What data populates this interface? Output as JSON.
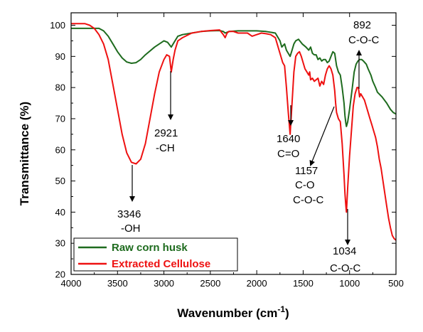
{
  "chart_data": {
    "type": "line",
    "xlabel": "Wavenumber (cm",
    "xlabel_sup": "-1",
    "xlabel_close": ")",
    "ylabel": "Transmittance (%)",
    "xlim": [
      4000,
      500
    ],
    "ylim": [
      20,
      104
    ],
    "x_reversed": true,
    "xticks": [
      "4000",
      "3500",
      "3000",
      "2500",
      "2000",
      "1500",
      "1000",
      "500"
    ],
    "yticks": [
      "20",
      "30",
      "40",
      "50",
      "60",
      "70",
      "80",
      "90",
      "100"
    ],
    "legend_position": "bottom-left",
    "series": [
      {
        "name": "Raw corn husk",
        "color": "#1e6b1e",
        "points": [
          [
            4000,
            99
          ],
          [
            3900,
            99
          ],
          [
            3800,
            99
          ],
          [
            3700,
            99
          ],
          [
            3650,
            98.2
          ],
          [
            3600,
            96.5
          ],
          [
            3550,
            94
          ],
          [
            3500,
            91.5
          ],
          [
            3450,
            89.5
          ],
          [
            3400,
            88.2
          ],
          [
            3350,
            87.8
          ],
          [
            3300,
            88
          ],
          [
            3250,
            89
          ],
          [
            3200,
            90.5
          ],
          [
            3100,
            93
          ],
          [
            3000,
            95
          ],
          [
            2960,
            94.5
          ],
          [
            2921,
            93
          ],
          [
            2880,
            95
          ],
          [
            2850,
            96.5
          ],
          [
            2800,
            97
          ],
          [
            2700,
            97.5
          ],
          [
            2600,
            98
          ],
          [
            2500,
            98.2
          ],
          [
            2400,
            98.3
          ],
          [
            2360,
            98
          ],
          [
            2340,
            97.5
          ],
          [
            2300,
            98
          ],
          [
            2200,
            98.2
          ],
          [
            2100,
            98.2
          ],
          [
            2000,
            98.2
          ],
          [
            1900,
            98
          ],
          [
            1800,
            97.5
          ],
          [
            1750,
            95
          ],
          [
            1730,
            93
          ],
          [
            1700,
            94
          ],
          [
            1680,
            92
          ],
          [
            1660,
            91
          ],
          [
            1640,
            90
          ],
          [
            1620,
            92
          ],
          [
            1600,
            94
          ],
          [
            1580,
            95
          ],
          [
            1550,
            95.5
          ],
          [
            1510,
            94
          ],
          [
            1470,
            93
          ],
          [
            1440,
            92
          ],
          [
            1420,
            93
          ],
          [
            1400,
            91
          ],
          [
            1380,
            90.5
          ],
          [
            1360,
            90.5
          ],
          [
            1340,
            89
          ],
          [
            1320,
            89.5
          ],
          [
            1300,
            88.5
          ],
          [
            1280,
            89
          ],
          [
            1260,
            89
          ],
          [
            1240,
            88
          ],
          [
            1220,
            88.5
          ],
          [
            1200,
            90
          ],
          [
            1180,
            91.5
          ],
          [
            1160,
            91
          ],
          [
            1140,
            87
          ],
          [
            1120,
            85
          ],
          [
            1100,
            84
          ],
          [
            1080,
            80
          ],
          [
            1060,
            75
          ],
          [
            1050,
            71
          ],
          [
            1040,
            68.5
          ],
          [
            1034,
            67.5
          ],
          [
            1020,
            69
          ],
          [
            1000,
            73
          ],
          [
            970,
            80
          ],
          [
            950,
            85
          ],
          [
            930,
            87.5
          ],
          [
            910,
            88.5
          ],
          [
            892,
            89
          ],
          [
            870,
            89
          ],
          [
            850,
            88.5
          ],
          [
            820,
            87.5
          ],
          [
            800,
            86
          ],
          [
            770,
            84
          ],
          [
            750,
            82
          ],
          [
            720,
            80
          ],
          [
            700,
            78.5
          ],
          [
            650,
            77
          ],
          [
            600,
            75
          ],
          [
            560,
            73
          ],
          [
            530,
            72
          ],
          [
            500,
            71.5
          ]
        ]
      },
      {
        "name": "Extracted Cellulose",
        "color": "#ee1111",
        "points": [
          [
            4000,
            100.5
          ],
          [
            3900,
            100.5
          ],
          [
            3850,
            100.5
          ],
          [
            3800,
            100
          ],
          [
            3750,
            99
          ],
          [
            3700,
            97
          ],
          [
            3650,
            94
          ],
          [
            3600,
            89
          ],
          [
            3550,
            81
          ],
          [
            3500,
            73
          ],
          [
            3450,
            65
          ],
          [
            3400,
            59
          ],
          [
            3350,
            56
          ],
          [
            3300,
            55.5
          ],
          [
            3250,
            57
          ],
          [
            3200,
            62
          ],
          [
            3150,
            70
          ],
          [
            3100,
            78
          ],
          [
            3050,
            85
          ],
          [
            3000,
            89
          ],
          [
            2970,
            90.5
          ],
          [
            2940,
            90
          ],
          [
            2921,
            85
          ],
          [
            2900,
            89
          ],
          [
            2880,
            92
          ],
          [
            2850,
            95
          ],
          [
            2800,
            96
          ],
          [
            2700,
            97.5
          ],
          [
            2600,
            98
          ],
          [
            2500,
            98.3
          ],
          [
            2400,
            98.5
          ],
          [
            2360,
            97
          ],
          [
            2340,
            96
          ],
          [
            2320,
            97.5
          ],
          [
            2300,
            98
          ],
          [
            2250,
            98
          ],
          [
            2200,
            97.5
          ],
          [
            2100,
            97.5
          ],
          [
            2050,
            96.5
          ],
          [
            2000,
            97
          ],
          [
            1950,
            97.5
          ],
          [
            1900,
            97.3
          ],
          [
            1850,
            97
          ],
          [
            1800,
            96
          ],
          [
            1760,
            92
          ],
          [
            1720,
            88
          ],
          [
            1700,
            87
          ],
          [
            1680,
            80
          ],
          [
            1660,
            72
          ],
          [
            1640,
            65
          ],
          [
            1620,
            75
          ],
          [
            1600,
            85
          ],
          [
            1580,
            90
          ],
          [
            1560,
            91
          ],
          [
            1540,
            91.5
          ],
          [
            1520,
            90
          ],
          [
            1500,
            88
          ],
          [
            1480,
            86
          ],
          [
            1460,
            85
          ],
          [
            1440,
            84
          ],
          [
            1430,
            85
          ],
          [
            1420,
            82.5
          ],
          [
            1400,
            83
          ],
          [
            1380,
            82
          ],
          [
            1360,
            82.5
          ],
          [
            1340,
            83
          ],
          [
            1320,
            80.5
          ],
          [
            1300,
            82
          ],
          [
            1280,
            81
          ],
          [
            1260,
            84
          ],
          [
            1240,
            86
          ],
          [
            1220,
            87
          ],
          [
            1200,
            86
          ],
          [
            1180,
            84
          ],
          [
            1160,
            79
          ],
          [
            1150,
            75
          ],
          [
            1140,
            72
          ],
          [
            1120,
            70
          ],
          [
            1100,
            69
          ],
          [
            1080,
            62
          ],
          [
            1060,
            52
          ],
          [
            1050,
            46
          ],
          [
            1040,
            42
          ],
          [
            1034,
            40
          ],
          [
            1020,
            48
          ],
          [
            1000,
            58
          ],
          [
            980,
            66
          ],
          [
            960,
            74
          ],
          [
            940,
            78
          ],
          [
            920,
            80
          ],
          [
            905,
            80
          ],
          [
            892,
            77
          ],
          [
            880,
            78
          ],
          [
            860,
            77
          ],
          [
            840,
            76
          ],
          [
            820,
            74
          ],
          [
            800,
            72
          ],
          [
            780,
            70
          ],
          [
            760,
            68
          ],
          [
            740,
            66
          ],
          [
            720,
            64
          ],
          [
            700,
            61
          ],
          [
            680,
            57
          ],
          [
            660,
            54
          ],
          [
            640,
            50
          ],
          [
            620,
            46
          ],
          [
            600,
            42
          ],
          [
            580,
            38
          ],
          [
            560,
            35
          ],
          [
            540,
            32.5
          ],
          [
            520,
            31.5
          ],
          [
            500,
            31
          ]
        ]
      }
    ],
    "annotations": [
      {
        "lines": [
          "3346",
          "-OH"
        ],
        "peak": [
          3300,
          55.5
        ],
        "arrow_to": [
          3300,
          45
        ],
        "text_at": [
          3300,
          40
        ]
      },
      {
        "lines": [
          "2921",
          "-CH"
        ],
        "peak": [
          2921,
          85
        ],
        "arrow_to": [
          2921,
          71
        ],
        "text_at": [
          2921,
          66
        ]
      },
      {
        "lines": [
          "1640",
          "C=O"
        ],
        "peak": [
          1640,
          65
        ],
        "arrow_to": [
          1640,
          70
        ],
        "text_at": [
          1640,
          66
        ]
      },
      {
        "lines": [
          "1157",
          "C-O",
          "C-O-C"
        ],
        "peak": [
          1157,
          79
        ],
        "arrow_to": [
          1157,
          70
        ],
        "text_at": [
          1157,
          62
        ]
      },
      {
        "lines": [
          "1034",
          "C-O-C"
        ],
        "peak": [
          1034,
          40
        ],
        "arrow_to": [
          1034,
          31
        ],
        "text_at": [
          1034,
          26
        ]
      },
      {
        "lines": [
          "892",
          "C-O-C"
        ],
        "peak": [
          892,
          77
        ],
        "arrow_to": [
          892,
          95
        ],
        "text_at": [
          892,
          104
        ]
      }
    ]
  }
}
